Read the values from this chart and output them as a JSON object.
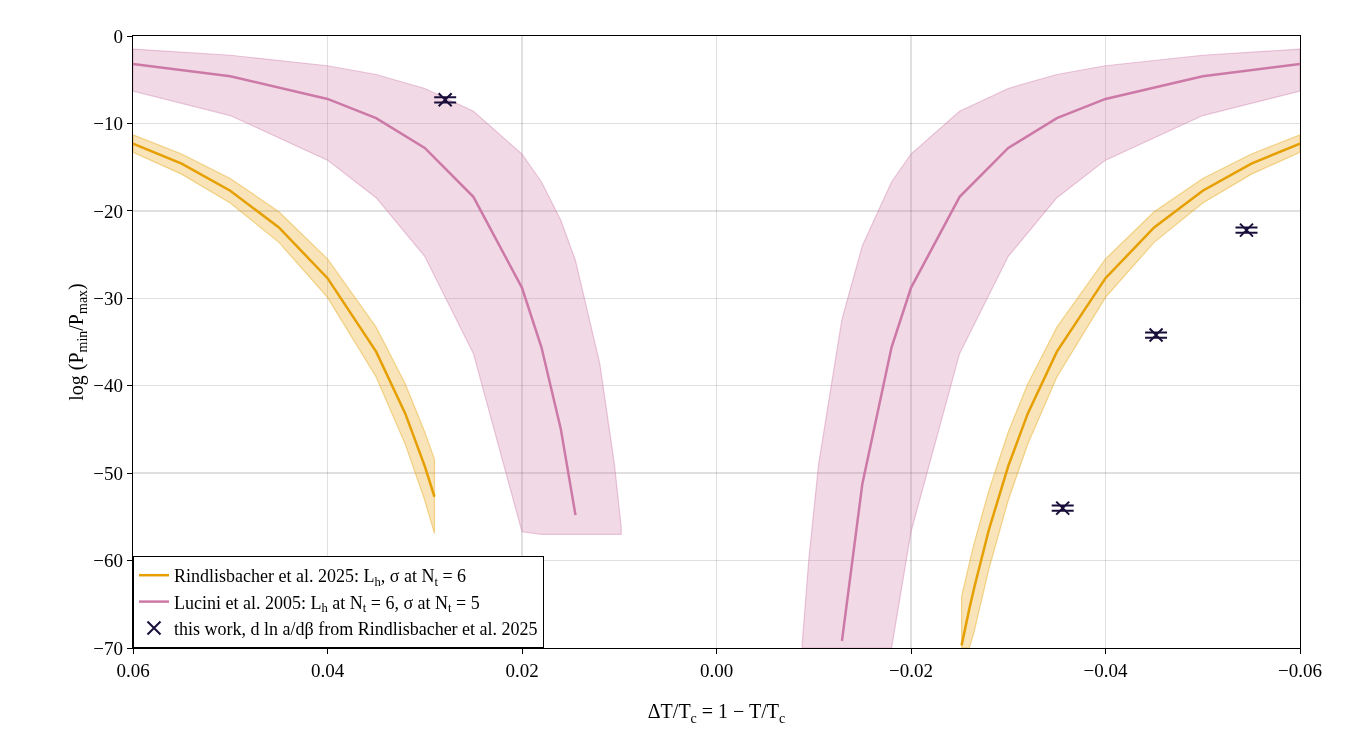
{
  "chart_data": {
    "type": "line",
    "xlabel": "ΔT/T$_{c}$ = 1 − T/T$_{c}$",
    "ylabel": "log (P$_{min}$/P$_{max}$)",
    "xlim": [
      0.06,
      -0.06
    ],
    "ylim": [
      -70,
      0
    ],
    "xticks": [
      {
        "value": 0.06,
        "label": "0.06"
      },
      {
        "value": 0.04,
        "label": "0.04"
      },
      {
        "value": 0.02,
        "label": "0.02"
      },
      {
        "value": 0,
        "label": "0.00"
      },
      {
        "value": -0.02,
        "label": "−0.02"
      },
      {
        "value": -0.04,
        "label": "−0.04"
      },
      {
        "value": -0.06,
        "label": "−0.06"
      }
    ],
    "yticks": [
      0,
      {
        "value": -10,
        "label": "−10"
      },
      {
        "value": -20,
        "label": "−20"
      },
      {
        "value": -30,
        "label": "−30"
      },
      {
        "value": -40,
        "label": "−40"
      },
      {
        "value": -50,
        "label": "−50"
      },
      {
        "value": -60,
        "label": "−60"
      },
      {
        "value": -70,
        "label": "−70"
      }
    ],
    "grid": true,
    "legend": "bottom left",
    "series": [
      {
        "name": "Rindlisbacher et al. 2025: L$_{h}$, σ at N$_{t}$ = 6",
        "color": "#e69f00",
        "x": [
          0.06,
          0.055,
          0.05,
          0.045,
          0.04,
          0.035,
          0.032,
          0.03,
          0.029,
          -0.0252,
          -0.026,
          -0.0265,
          -0.028,
          -0.03,
          -0.032,
          -0.035,
          -0.04,
          -0.045,
          -0.05,
          -0.055,
          -0.06
        ],
        "values": [
          -12.3,
          -14.6,
          -17.7,
          -21.9,
          -27.7,
          -36.1,
          -43.2,
          -49.2,
          -52.7,
          -69.7,
          -65.5,
          -63.1,
          -56.5,
          -49.2,
          -43.2,
          -36.1,
          -27.7,
          -21.9,
          -17.7,
          -14.6,
          -12.3
        ],
        "upper": [
          -11.3,
          -13.5,
          -16.3,
          -20.1,
          -25.5,
          -33.3,
          -39.8,
          -45.3,
          -48.4,
          -64.1,
          -60.3,
          -58.0,
          -52.0,
          -45.3,
          -39.8,
          -33.3,
          -25.5,
          -20.1,
          -16.3,
          -13.5,
          -11.3
        ],
        "lower": [
          -13.3,
          -15.8,
          -19.1,
          -23.6,
          -29.9,
          -39.0,
          -46.7,
          -53.1,
          -56.9,
          -70.0,
          -70.0,
          -68.1,
          -61.0,
          -53.1,
          -46.7,
          -39.0,
          -29.9,
          -23.6,
          -19.1,
          -15.8,
          -13.3
        ]
      },
      {
        "name": "Lucini et al. 2005: L$_{h}$ at N$_{t}$ = 6, σ at N$_{t}$ = 5",
        "color": "#cc79a7",
        "x": [
          0.06,
          0.05,
          0.04,
          0.035,
          0.03,
          0.025,
          0.02,
          0.018,
          0.016,
          0.0145,
          0.012,
          0.0105,
          0.0098,
          -0.0088,
          -0.0095,
          -0.0105,
          -0.0129,
          -0.015,
          -0.018,
          -0.02,
          -0.025,
          -0.03,
          -0.035,
          -0.04,
          -0.05,
          -0.06
        ],
        "values": [
          -3.2,
          -4.6,
          -7.2,
          -9.4,
          -12.8,
          -18.4,
          -28.8,
          -35.6,
          -45.0,
          -54.8,
          null,
          null,
          null,
          null,
          null,
          null,
          -69.2,
          -51.2,
          -35.6,
          -28.8,
          -18.4,
          -12.8,
          -9.4,
          -7.2,
          -4.6,
          -3.2
        ],
        "upper": [
          -1.5,
          -2.2,
          -3.4,
          -4.4,
          -6.0,
          -8.6,
          -13.5,
          -16.7,
          -21.1,
          -25.7,
          -37.5,
          -49.0,
          -56.2,
          -69.7,
          -59.8,
          -49.0,
          -32.4,
          -24.0,
          -16.7,
          -13.5,
          -8.6,
          -6.0,
          -4.4,
          -3.4,
          -2.2,
          -1.5
        ],
        "lower": [
          -6.3,
          -9.1,
          -14.2,
          -18.5,
          -25.2,
          -36.3,
          -56.7,
          -57.0,
          -57.0,
          -57.0,
          -57.0,
          -57.0,
          -57.0,
          -70.0,
          -70.0,
          -70.0,
          -70.0,
          -70.0,
          -70.0,
          -56.7,
          -36.3,
          -25.2,
          -18.5,
          -14.2,
          -9.1,
          -6.3
        ]
      },
      {
        "name": "this work, d ln a/dβ from Rindlisbacher et al. 2025",
        "type": "scatter",
        "color": "#1a0f3a",
        "marker": "cross",
        "x": [
          0.0279,
          -0.0356,
          -0.0452,
          -0.0545
        ],
        "values": [
          -7.3,
          -54.0,
          -34.2,
          -22.2
        ],
        "errors": [
          0.3,
          0.3,
          0.3,
          0.3
        ]
      }
    ]
  }
}
